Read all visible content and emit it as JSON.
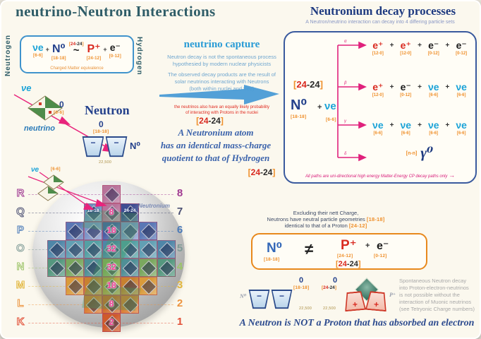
{
  "colors": {
    "accent_pink": "#e0217c",
    "accent_blue": "#4a9bd5",
    "navy": "#24418c",
    "red": "#d92a20",
    "cyan": "#1ba3d8",
    "orange": "#ef8f2a",
    "title_teal": "#2f5d68"
  },
  "icons": {
    "arrow_right": "→"
  },
  "title": "neutrino-Neutron Interactions",
  "ref2424": {
    "lb": "[",
    "v1": "24",
    "v2": "-24",
    "rb": "]"
  },
  "subs": {
    "s66": "[6-6]",
    "s1818": "[18-18]",
    "s2412": "[24-12]",
    "s012": "[0-12]",
    "s120": "[12-0]",
    "snn": "[n-n]"
  },
  "equivalence": {
    "left_vertical": "Neutrogen",
    "right_vertical": "Hydrogen",
    "nu": "νe",
    "plus": "+",
    "n0": "N⁰",
    "tilde": "~",
    "p": "P⁺",
    "e": "e⁻",
    "caption": "Charged Matter equivalence"
  },
  "capture": {
    "heading": "neutrino capture",
    "para1": "Neutron decay is not the spontaneous process\nhypothesied by modern nuclear physicists",
    "para2": "The observed decay products are the result of\nsolar neutrinos interacting with Neutrons\n(both within nuclei and free)",
    "fine_print": "the neutrinos also have an equally likely probability\nof interacting with Protons in the nuclei"
  },
  "statement_mid": "A Neutronium atom\nhas an identical mass-charge\nquotient to that of Hydrogen",
  "decay": {
    "heading": "Neutronium decay processes",
    "subtitle": "A Neutron/neutrino interaction can decay into 4 differing particle sets",
    "reactant": {
      "n0": "N⁰",
      "plus": "+",
      "nu": "νe"
    },
    "plus": "+",
    "branch_labels": [
      "α",
      "β",
      "γ",
      "δ"
    ],
    "rows": [
      {
        "terms": [
          {
            "s": "e⁺",
            "sub": "[12-0]"
          },
          {
            "s": "e⁺",
            "sub": "[12-0]"
          },
          {
            "s": "e⁻",
            "sub": "[0-12]"
          },
          {
            "s": "e⁻",
            "sub": "[0-12]"
          }
        ]
      },
      {
        "terms": [
          {
            "s": "e⁺",
            "sub": "[12-0]"
          },
          {
            "s": "e⁻",
            "sub": "[0-12]"
          },
          {
            "s": "νe",
            "sub": "[6-6]"
          },
          {
            "s": "νe",
            "sub": "[6-6]"
          }
        ]
      },
      {
        "terms": [
          {
            "s": "νe",
            "sub": "[6-6]"
          },
          {
            "s": "νe",
            "sub": "[6-6]"
          },
          {
            "s": "νe",
            "sub": "[6-6]"
          },
          {
            "s": "νe",
            "sub": "[6-6]"
          }
        ]
      }
    ],
    "gamma_row": {
      "sub": "[n-n]",
      "s": "γ⁰"
    },
    "footnote": "All paths are uni-directional high energy Matter-Energy CP decay paths only"
  },
  "neutron_panel": {
    "nu_label": "νe",
    "zero": "0",
    "neutrino_label": "neutrino",
    "heading": "Neutron",
    "n_zero": "0",
    "n_symbol": "N⁰",
    "mass": "22,500"
  },
  "pyramid": {
    "caption": "Neutronium",
    "nu_label": "νe",
    "tile_label_left": "18-18",
    "tile_label_right": "24-24",
    "center_numbers": [
      "8",
      "18",
      "32",
      "32",
      "18",
      "8",
      "2"
    ],
    "shells": [
      {
        "letter": "R",
        "number": "8",
        "color": "#a03a92"
      },
      {
        "letter": "Q",
        "number": "7",
        "color": "#4a4f72"
      },
      {
        "letter": "P",
        "number": "6",
        "color": "#4a7ab8"
      },
      {
        "letter": "O",
        "number": "5",
        "color": "#7e9a96"
      },
      {
        "letter": "N",
        "number": "4",
        "color": "#9cc468"
      },
      {
        "letter": "M",
        "number": "3",
        "color": "#e2b63c"
      },
      {
        "letter": "L",
        "number": "2",
        "color": "#ec9440"
      },
      {
        "letter": "K",
        "number": "1",
        "color": "#e25038"
      }
    ],
    "rows": [
      {
        "colors": [
          "#b8739b"
        ]
      },
      {
        "colors": [
          "#6d8fc0",
          "#b8739b",
          "#3f4e93"
        ]
      },
      {
        "colors": [
          "#5a77b5",
          "#7d94c8",
          "#4a5fa5",
          "#7d94c8",
          "#5a77b5"
        ]
      },
      {
        "colors": [
          "#4f86a8",
          "#62a0b4",
          "#54a0a4",
          "#4f86a8",
          "#54a0a4",
          "#62a0b4",
          "#4f86a8"
        ]
      },
      {
        "colors": [
          "#55987f",
          "#7aa85f",
          "#4f8f96",
          "#8fae55",
          "#4f8f96",
          "#7aa85f",
          "#55987f"
        ]
      },
      {
        "colors": [
          "#d99a3a",
          "#c8812f",
          "#b5a23f",
          "#c8812f",
          "#d99a3a"
        ]
      },
      {
        "colors": [
          "#d97b2f",
          "#cf6a28",
          "#d97b2f"
        ]
      },
      {
        "colors": [
          "#cf5a2a"
        ]
      }
    ]
  },
  "comparison": {
    "line1": "Excluding their nett Charge,",
    "line2a": "Neutrons have neutral particle geometries ",
    "line2b": "[18-18]",
    "line3a": "identical to that of a Proton ",
    "line3b": "[24-12]",
    "n0": "N⁰",
    "neq": "≠",
    "p": "P⁺",
    "plus": "+",
    "e": "e⁻"
  },
  "bottom": {
    "neutron_symbol": "N⁰",
    "neutron_zero": "0",
    "neutron_mass": "22,500",
    "proton_zero": "0",
    "proton_mass": "22,500",
    "proton_symbol": "P⁺",
    "note": "Spontaneous Neutron decay\ninto Proton-electron-neutrinos\nis not possible without the\ninteraction of Muonic neutrinos\n(see Tetryonic Charge numbers)",
    "statement": "A Neutron is NOT a Proton that has absorbed an electron"
  }
}
